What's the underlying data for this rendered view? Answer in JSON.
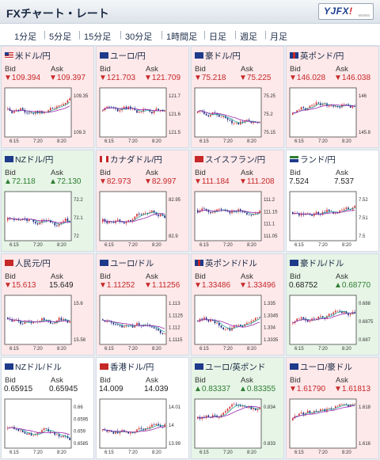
{
  "header": {
    "title": "FXチャート・レート",
    "logo_text": "YJFX!",
    "logo_sub": "wwww"
  },
  "tabs": [
    {
      "label": "1分足"
    },
    {
      "label": "5分足",
      "active": true
    },
    {
      "label": "15分足"
    },
    {
      "label": "30分足"
    },
    {
      "label": "1時間足"
    },
    {
      "label": "日足"
    },
    {
      "label": "週足"
    },
    {
      "label": "月足"
    }
  ],
  "labels": {
    "bid": "Bid",
    "ask": "Ask"
  },
  "cards": [
    {
      "name": "米ドル/円",
      "flag": "us",
      "state": "neg",
      "bid": "▼109.394",
      "ask": "▼109.397",
      "bid_dir": "down",
      "ask_dir": "down",
      "yticks": [
        "109.35",
        "109.3"
      ],
      "xticks": [
        "6:15",
        "7:20",
        "8:20"
      ]
    },
    {
      "name": "ユーロ/円",
      "flag": "eu",
      "state": "neg",
      "bid": "▼121.703",
      "ask": "▼121.709",
      "bid_dir": "down",
      "ask_dir": "down",
      "yticks": [
        "121.7",
        "121.6",
        "121.5"
      ],
      "xticks": [
        "6:15",
        "7:20",
        "8:20"
      ]
    },
    {
      "name": "豪ドル/円",
      "flag": "au",
      "state": "neg",
      "bid": "▼75.218",
      "ask": "▼75.225",
      "bid_dir": "down",
      "ask_dir": "down",
      "yticks": [
        "75.25",
        "75.2",
        "75.15"
      ],
      "xticks": [
        "6:15",
        "7:20",
        "8:20"
      ]
    },
    {
      "name": "英ポンド/円",
      "flag": "gb",
      "state": "neg",
      "bid": "▼146.028",
      "ask": "▼146.038",
      "bid_dir": "down",
      "ask_dir": "down",
      "yticks": [
        "146",
        "145.8"
      ],
      "xticks": [
        "6:15",
        "7:20",
        "8:20"
      ]
    },
    {
      "name": "NZドル/円",
      "flag": "nz",
      "state": "pos",
      "bid": "▲72.118",
      "ask": "▲72.130",
      "bid_dir": "up",
      "ask_dir": "up",
      "yticks": [
        "72.2",
        "72.1",
        "72"
      ],
      "xticks": [
        "6:15",
        "7:20",
        "8:20"
      ]
    },
    {
      "name": "カナダドル/円",
      "flag": "ca",
      "state": "neg",
      "bid": "▼82.973",
      "ask": "▼82.997",
      "bid_dir": "down",
      "ask_dir": "down",
      "yticks": [
        "82.95",
        "82.9"
      ],
      "xticks": [
        "6:15",
        "7:20",
        "8:20"
      ]
    },
    {
      "name": "スイスフラン/円",
      "flag": "ch",
      "state": "neg",
      "bid": "▼111.184",
      "ask": "▼111.208",
      "bid_dir": "down",
      "ask_dir": "down",
      "yticks": [
        "111.2",
        "111.15",
        "111.1",
        "111.05"
      ],
      "xticks": [
        "6:15",
        "7:20",
        "8:20"
      ]
    },
    {
      "name": "ランド/円",
      "flag": "za",
      "state": "neu",
      "bid": "7.524",
      "ask": "7.537",
      "bid_dir": "flat",
      "ask_dir": "flat",
      "yticks": [
        "7.52",
        "7.51",
        "7.5"
      ],
      "xticks": [
        "6:15",
        "7:20",
        "8:20"
      ]
    },
    {
      "name": "人民元/円",
      "flag": "cn",
      "state": "neg",
      "bid": "▼15.613",
      "ask": "15.649",
      "bid_dir": "down",
      "ask_dir": "flat",
      "yticks": [
        "15.6",
        "15.58"
      ],
      "xticks": [
        "6:15",
        "7:20",
        "8:20"
      ]
    },
    {
      "name": "ユーロ/ドル",
      "flag": "eu",
      "state": "neg",
      "bid": "▼1.11252",
      "ask": "▼1.11256",
      "bid_dir": "down",
      "ask_dir": "down",
      "yticks": [
        "1.113",
        "1.1125",
        "1.112",
        "1.1115"
      ],
      "xticks": [
        "6:15",
        "7:20",
        "8:20"
      ]
    },
    {
      "name": "英ポンド/ドル",
      "flag": "gb",
      "state": "neg",
      "bid": "▼1.33486",
      "ask": "▼1.33496",
      "bid_dir": "down",
      "ask_dir": "down",
      "yticks": [
        "1.335",
        "1.3345",
        "1.334",
        "1.3335"
      ],
      "xticks": [
        "6:15",
        "7:20",
        "8:20"
      ]
    },
    {
      "name": "豪ドル/ドル",
      "flag": "au",
      "state": "pos",
      "bid": "0.68752",
      "ask": "▲0.68770",
      "bid_dir": "flat",
      "ask_dir": "up",
      "yticks": [
        "0.688",
        "0.6875",
        "0.687"
      ],
      "xticks": [
        "6:15",
        "7:20",
        "8:20"
      ]
    },
    {
      "name": "NZドル/ドル",
      "flag": "nz",
      "state": "neu",
      "bid": "0.65915",
      "ask": "0.65945",
      "bid_dir": "flat",
      "ask_dir": "flat",
      "yticks": [
        "0.66",
        "0.6595",
        "0.659",
        "0.6585"
      ],
      "xticks": [
        "6:15",
        "7:20",
        "8:20"
      ]
    },
    {
      "name": "香港ドル/円",
      "flag": "hk",
      "state": "neu",
      "bid": "14.009",
      "ask": "14.039",
      "bid_dir": "flat",
      "ask_dir": "flat",
      "yticks": [
        "14.01",
        "14",
        "13.99"
      ],
      "xticks": [
        "6:15",
        "7:20",
        "8:20"
      ]
    },
    {
      "name": "ユーロ/英ポンド",
      "flag": "eu",
      "state": "pos",
      "bid": "▲0.83337",
      "ask": "▲0.83355",
      "bid_dir": "up",
      "ask_dir": "up",
      "yticks": [
        "0.834",
        "0.833"
      ],
      "xticks": [
        "6:15",
        "7:20",
        "8:20"
      ]
    },
    {
      "name": "ユーロ/豪ドル",
      "flag": "eu",
      "state": "neg",
      "bid": "▼1.61790",
      "ask": "▼1.61813",
      "bid_dir": "down",
      "ask_dir": "down",
      "yticks": [
        "1.618",
        "1.616"
      ],
      "xticks": [
        "6:15",
        "7:20",
        "8:20"
      ]
    }
  ],
  "colors": {
    "up_candle": "#d32f2f",
    "down_candle": "#1a237e",
    "ma_fast": "#26a69a",
    "ma_slow": "#9c27b0",
    "neg_bg": "#fde8ea",
    "pos_bg": "#e6f5e6"
  }
}
